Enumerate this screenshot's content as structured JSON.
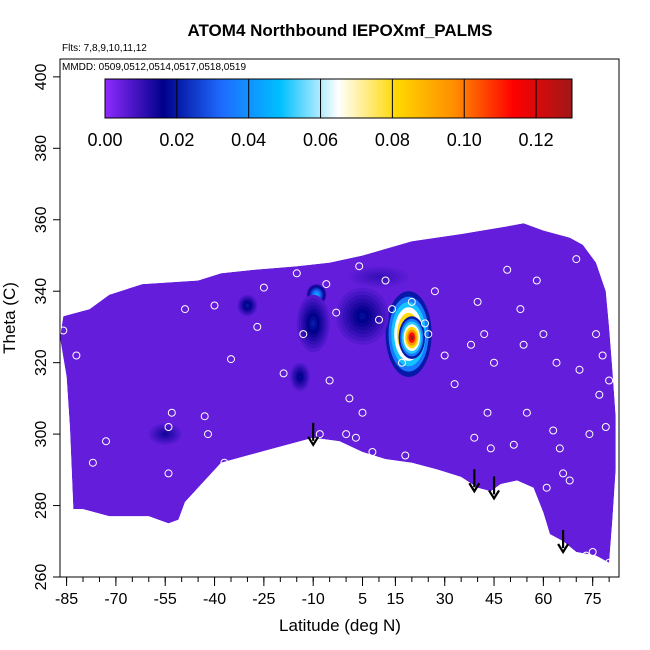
{
  "chart_data": {
    "type": "heatmap",
    "title": "ATOM4 Northbound IEPOXmf_PALMS",
    "subtitle_flights": "Flts: 7,8,9,10,11,12",
    "subtitle_dates": "MMDD: 0509,0512,0514,0517,0518,0519",
    "xlabel": "Latitude (deg N)",
    "ylabel": "Theta (C)",
    "xlim": [
      -87,
      83
    ],
    "ylim": [
      260,
      405
    ],
    "xticks": [
      -85,
      -70,
      -55,
      -40,
      -25,
      -10,
      5,
      15,
      30,
      45,
      60,
      75
    ],
    "xtick_labels": [
      "-85",
      "-70",
      "-55",
      "-40",
      "-25",
      "-10",
      "5",
      "15",
      "30",
      "45",
      "60",
      "75"
    ],
    "yticks": [
      260,
      280,
      300,
      320,
      340,
      360,
      380,
      400
    ],
    "ytick_labels": [
      "260",
      "280",
      "300",
      "320",
      "340",
      "360",
      "380",
      "400"
    ],
    "colorbar": {
      "min": 0.0,
      "max": 0.13,
      "ticks": [
        0.0,
        0.02,
        0.04,
        0.06,
        0.08,
        0.1,
        0.12
      ],
      "tick_labels": [
        "0.00",
        "0.02",
        "0.04",
        "0.06",
        "0.08",
        "0.10",
        "0.12"
      ],
      "colors": [
        "#8f2aff",
        "#00008b",
        "#1e6bff",
        "#00bfff",
        "#ffffff",
        "#ffd700",
        "#ff8c00",
        "#ff0000",
        "#a01818"
      ]
    },
    "background_value": 0.005,
    "domain_outline": [
      [
        -87,
        327
      ],
      [
        -86,
        333
      ],
      [
        -78,
        335
      ],
      [
        -72,
        339
      ],
      [
        -62,
        342
      ],
      [
        -45,
        343
      ],
      [
        -38,
        345
      ],
      [
        -28,
        346
      ],
      [
        -15,
        347
      ],
      [
        -5,
        348
      ],
      [
        5,
        350
      ],
      [
        20,
        354
      ],
      [
        35,
        356
      ],
      [
        48,
        358
      ],
      [
        54,
        359
      ],
      [
        60,
        357
      ],
      [
        68,
        355
      ],
      [
        72,
        353
      ],
      [
        76,
        348
      ],
      [
        79,
        340
      ],
      [
        80,
        330
      ],
      [
        81,
        318
      ],
      [
        82,
        305
      ],
      [
        82,
        290
      ],
      [
        81,
        276
      ],
      [
        80,
        264
      ],
      [
        76,
        266
      ],
      [
        70,
        267
      ],
      [
        66,
        270
      ],
      [
        62,
        272
      ],
      [
        60,
        278
      ],
      [
        57,
        285
      ],
      [
        52,
        287
      ],
      [
        47,
        286
      ],
      [
        44,
        284
      ],
      [
        40,
        285
      ],
      [
        35,
        288
      ],
      [
        28,
        290
      ],
      [
        20,
        292
      ],
      [
        12,
        293
      ],
      [
        5,
        295
      ],
      [
        -2,
        298
      ],
      [
        -10,
        299
      ],
      [
        -22,
        296
      ],
      [
        -30,
        294
      ],
      [
        -38,
        292
      ],
      [
        -44,
        286
      ],
      [
        -49,
        281
      ],
      [
        -51,
        276
      ],
      [
        -54,
        275
      ],
      [
        -60,
        277
      ],
      [
        -72,
        277
      ],
      [
        -80,
        279
      ],
      [
        -83,
        279
      ],
      [
        -83,
        280
      ],
      [
        -84,
        302
      ],
      [
        -85,
        316
      ]
    ],
    "features": [
      {
        "lat": 19,
        "theta": 328,
        "rx": 7,
        "ry": 12,
        "value": 0.125
      },
      {
        "lat": 20,
        "theta": 327,
        "rx": 4,
        "ry": 6,
        "value": 0.128
      },
      {
        "lat": -9,
        "theta": 339,
        "rx": 3,
        "ry": 3,
        "value": 0.045
      },
      {
        "lat": -10,
        "theta": 331,
        "rx": 5,
        "ry": 8,
        "value": 0.02
      },
      {
        "lat": 5,
        "theta": 333,
        "rx": 8,
        "ry": 8,
        "value": 0.018
      },
      {
        "lat": 10,
        "theta": 344,
        "rx": 9,
        "ry": 3,
        "value": 0.01
      },
      {
        "lat": -30,
        "theta": 336,
        "rx": 3,
        "ry": 3,
        "value": 0.02
      },
      {
        "lat": -14,
        "theta": 316,
        "rx": 3,
        "ry": 4,
        "value": 0.018
      },
      {
        "lat": -55,
        "theta": 300,
        "rx": 5,
        "ry": 3,
        "value": 0.014
      }
    ],
    "sample_points": [
      [
        -86,
        329
      ],
      [
        -82,
        322
      ],
      [
        -79,
        343
      ],
      [
        -77,
        292
      ],
      [
        -73,
        298
      ],
      [
        -53,
        306
      ],
      [
        -54,
        302
      ],
      [
        -54,
        289
      ],
      [
        -49,
        335
      ],
      [
        -43,
        305
      ],
      [
        -42,
        300
      ],
      [
        -40,
        336
      ],
      [
        -37,
        292
      ],
      [
        -35,
        321
      ],
      [
        -27,
        330
      ],
      [
        -25,
        341
      ],
      [
        -19,
        317
      ],
      [
        -15,
        345
      ],
      [
        -13,
        328
      ],
      [
        -8,
        300
      ],
      [
        -6,
        342
      ],
      [
        -5,
        315
      ],
      [
        -3,
        334
      ],
      [
        0,
        300
      ],
      [
        1,
        310
      ],
      [
        3,
        299
      ],
      [
        4,
        347
      ],
      [
        5,
        306
      ],
      [
        8,
        295
      ],
      [
        10,
        332
      ],
      [
        12,
        343
      ],
      [
        14,
        335
      ],
      [
        17,
        320
      ],
      [
        18,
        294
      ],
      [
        20,
        337
      ],
      [
        24,
        331
      ],
      [
        25,
        328
      ],
      [
        27,
        340
      ],
      [
        30,
        322
      ],
      [
        33,
        314
      ],
      [
        38,
        325
      ],
      [
        39,
        299
      ],
      [
        40,
        337
      ],
      [
        42,
        328
      ],
      [
        43,
        306
      ],
      [
        44,
        296
      ],
      [
        45,
        320
      ],
      [
        49,
        346
      ],
      [
        51,
        297
      ],
      [
        53,
        335
      ],
      [
        54,
        325
      ],
      [
        55,
        306
      ],
      [
        58,
        343
      ],
      [
        60,
        328
      ],
      [
        61,
        285
      ],
      [
        63,
        301
      ],
      [
        64,
        320
      ],
      [
        65,
        296
      ],
      [
        66,
        289
      ],
      [
        68,
        287
      ],
      [
        70,
        349
      ],
      [
        71,
        318
      ],
      [
        73,
        266
      ],
      [
        74,
        300
      ],
      [
        75,
        267
      ],
      [
        76,
        328
      ],
      [
        77,
        311
      ],
      [
        78,
        322
      ],
      [
        79,
        302
      ],
      [
        80,
        315
      ],
      [
        80,
        264
      ]
    ],
    "arrows": [
      {
        "lat": -10,
        "theta": 297
      },
      {
        "lat": 39,
        "theta": 284
      },
      {
        "lat": 45,
        "theta": 282
      },
      {
        "lat": 66,
        "theta": 267
      }
    ]
  }
}
